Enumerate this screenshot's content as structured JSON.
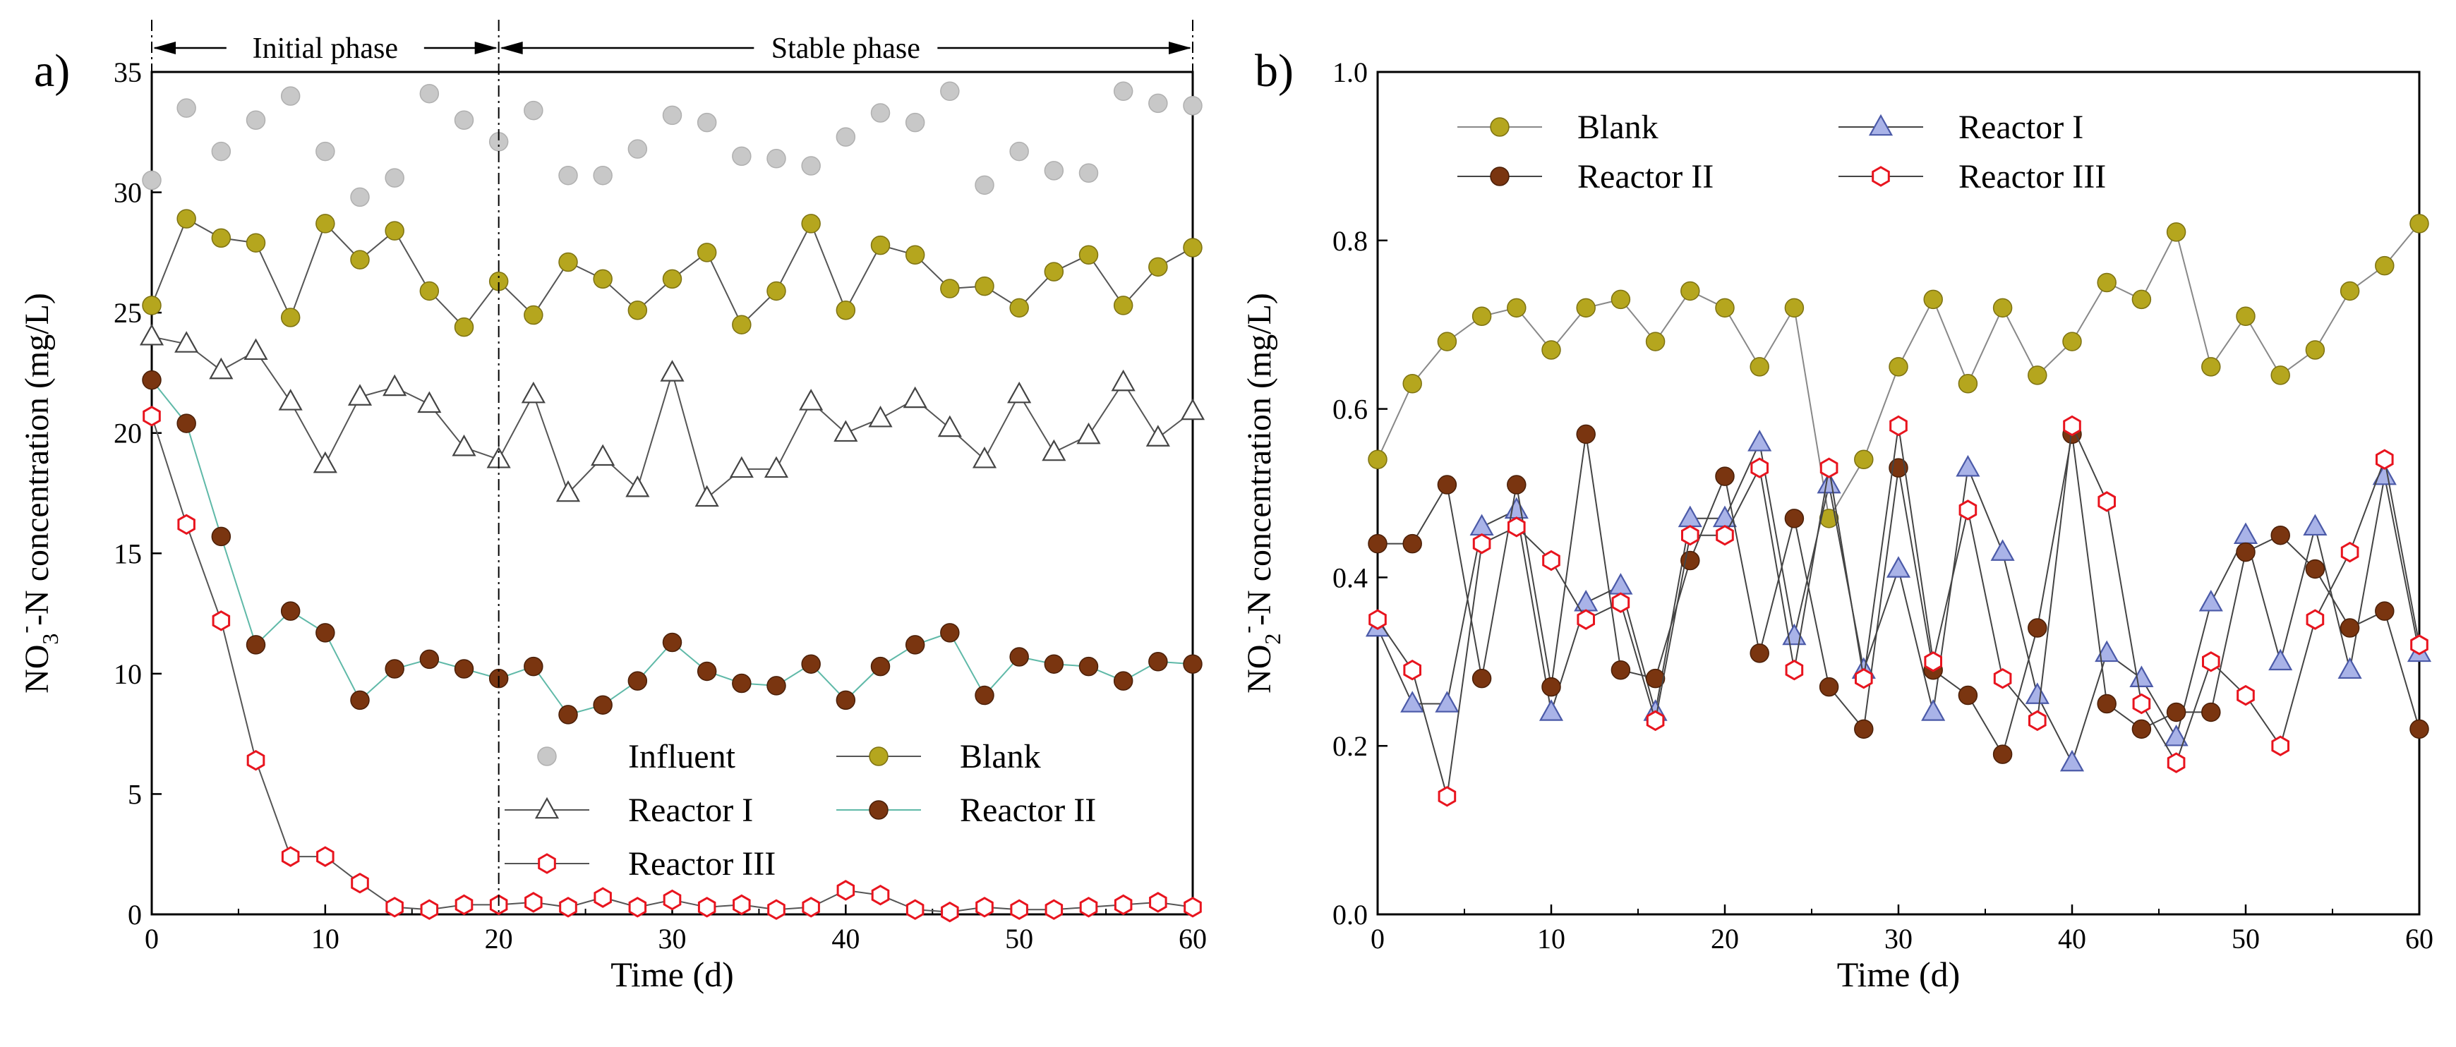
{
  "chart_data": [
    {
      "type": "scatter",
      "panel_label": "a)",
      "xlabel": "Time (d)",
      "ylabel": {
        "main": "NO",
        "sub": "3",
        "sup": "-",
        "rest": "-N concentration (mg/L)"
      },
      "xlim": [
        0,
        60
      ],
      "ylim": [
        0,
        35
      ],
      "xticks": [
        0,
        10,
        20,
        30,
        40,
        50,
        60
      ],
      "yticks": [
        0,
        5,
        10,
        15,
        20,
        25,
        30,
        35
      ],
      "phases": {
        "initial": "Initial phase",
        "stable": "Stable phase",
        "divider_x": 20
      },
      "legend": [
        "Influent",
        "Blank",
        "Reactor I",
        "Reactor II",
        "Reactor III"
      ],
      "series": [
        {
          "name": "Influent",
          "marker": "circle",
          "color": "#c8c8c8",
          "line": false,
          "x": [
            0,
            2,
            4,
            6,
            8,
            10,
            12,
            14,
            16,
            18,
            20,
            22,
            24,
            26,
            28,
            30,
            32,
            34,
            36,
            38,
            40,
            42,
            44,
            46,
            48,
            50,
            52,
            54,
            56,
            58,
            60
          ],
          "y": [
            30.5,
            33.5,
            31.7,
            33.0,
            34.0,
            31.7,
            29.8,
            30.6,
            34.1,
            33.0,
            32.1,
            33.4,
            30.7,
            30.7,
            31.8,
            33.2,
            32.9,
            31.5,
            31.4,
            31.1,
            32.3,
            33.3,
            32.9,
            34.2,
            30.3,
            31.7,
            30.9,
            30.8,
            34.2,
            33.7,
            33.6
          ]
        },
        {
          "name": "Blank",
          "marker": "circle",
          "color": "#b5a61e",
          "line": true,
          "linecolor": "#555555",
          "x": [
            0,
            2,
            4,
            6,
            8,
            10,
            12,
            14,
            16,
            18,
            20,
            22,
            24,
            26,
            28,
            30,
            32,
            34,
            36,
            38,
            40,
            42,
            44,
            46,
            48,
            50,
            52,
            54,
            56,
            58,
            60
          ],
          "y": [
            25.3,
            28.9,
            28.1,
            27.9,
            24.8,
            28.7,
            27.2,
            28.4,
            25.9,
            24.4,
            26.3,
            24.9,
            27.1,
            26.4,
            25.1,
            26.4,
            27.5,
            24.5,
            25.9,
            28.7,
            25.1,
            27.8,
            27.4,
            26.0,
            26.1,
            25.2,
            26.7,
            27.4,
            25.3,
            26.9,
            27.7
          ]
        },
        {
          "name": "Reactor I",
          "marker": "triangle",
          "color": "#ffffff",
          "line": true,
          "linecolor": "#555555",
          "x": [
            0,
            2,
            4,
            6,
            8,
            10,
            12,
            14,
            16,
            18,
            20,
            22,
            24,
            26,
            28,
            30,
            32,
            34,
            36,
            38,
            40,
            42,
            44,
            46,
            48,
            50,
            52,
            54,
            56,
            58,
            60
          ],
          "y": [
            24.0,
            23.7,
            22.6,
            23.4,
            21.3,
            18.7,
            21.5,
            21.9,
            21.2,
            19.4,
            18.9,
            21.6,
            17.5,
            19.0,
            17.7,
            22.5,
            17.3,
            18.5,
            18.5,
            21.3,
            20.0,
            20.6,
            21.4,
            20.2,
            18.9,
            21.6,
            19.2,
            19.9,
            22.1,
            19.8,
            20.9
          ]
        },
        {
          "name": "Reactor II",
          "marker": "circle",
          "color": "#7a3510",
          "line": true,
          "linecolor": "#5fb9a8",
          "x": [
            0,
            2,
            4,
            6,
            8,
            10,
            12,
            14,
            16,
            18,
            20,
            22,
            24,
            26,
            28,
            30,
            32,
            34,
            36,
            38,
            40,
            42,
            44,
            46,
            48,
            50,
            52,
            54,
            56,
            58,
            60
          ],
          "y": [
            22.2,
            20.4,
            15.7,
            11.2,
            12.6,
            11.7,
            8.9,
            10.2,
            10.6,
            10.2,
            9.8,
            10.3,
            8.3,
            8.7,
            9.7,
            11.3,
            10.1,
            9.6,
            9.5,
            10.4,
            8.9,
            10.3,
            11.2,
            11.7,
            9.1,
            10.7,
            10.4,
            10.3,
            9.7,
            10.5,
            10.4
          ]
        },
        {
          "name": "Reactor III",
          "marker": "hexagon",
          "color": "#e8141e",
          "line": true,
          "linecolor": "#555555",
          "x": [
            0,
            2,
            4,
            6,
            8,
            10,
            12,
            14,
            16,
            18,
            20,
            22,
            24,
            26,
            28,
            30,
            32,
            34,
            36,
            38,
            40,
            42,
            44,
            46,
            48,
            50,
            52,
            54,
            56,
            58,
            60
          ],
          "y": [
            20.7,
            16.2,
            12.2,
            6.4,
            2.4,
            2.4,
            1.3,
            0.3,
            0.2,
            0.4,
            0.4,
            0.5,
            0.3,
            0.7,
            0.3,
            0.6,
            0.3,
            0.4,
            0.2,
            0.3,
            1.0,
            0.8,
            0.2,
            0.1,
            0.3,
            0.2,
            0.2,
            0.3,
            0.4,
            0.5,
            0.3
          ]
        }
      ]
    },
    {
      "type": "line",
      "panel_label": "b)",
      "xlabel": "Time (d)",
      "ylabel": {
        "main": "NO",
        "sub": "2",
        "sup": "-",
        "rest": "-N concentration (mg/L)"
      },
      "xlim": [
        0,
        60
      ],
      "ylim": [
        0.0,
        1.0
      ],
      "xticks": [
        0,
        10,
        20,
        30,
        40,
        50,
        60
      ],
      "yticks": [
        "0.0",
        "0.2",
        "0.4",
        "0.6",
        "0.8",
        "1.0"
      ],
      "legend": [
        "Blank",
        "Reactor I",
        "Reactor II",
        "Reactor III"
      ],
      "series": [
        {
          "name": "Blank",
          "marker": "circle",
          "color": "#b5a61e",
          "line": true,
          "linecolor": "#888888",
          "x": [
            0,
            2,
            4,
            6,
            8,
            10,
            12,
            14,
            16,
            18,
            20,
            22,
            24,
            26,
            28,
            30,
            32,
            34,
            36,
            38,
            40,
            42,
            44,
            46,
            48,
            50,
            52,
            54,
            56,
            58,
            60
          ],
          "y": [
            0.54,
            0.63,
            0.68,
            0.71,
            0.72,
            0.67,
            0.72,
            0.73,
            0.68,
            0.74,
            0.72,
            0.65,
            0.72,
            0.47,
            0.54,
            0.65,
            0.73,
            0.63,
            0.72,
            0.64,
            0.68,
            0.75,
            0.73,
            0.81,
            0.65,
            0.71,
            0.64,
            0.67,
            0.74,
            0.77,
            0.82
          ]
        },
        {
          "name": "Reactor I",
          "marker": "triangle",
          "color": "#a9b3e8",
          "line": true,
          "linecolor": "#444444",
          "x": [
            0,
            2,
            4,
            6,
            8,
            10,
            12,
            14,
            16,
            18,
            20,
            22,
            24,
            26,
            28,
            30,
            32,
            34,
            36,
            38,
            40,
            42,
            44,
            46,
            48,
            50,
            52,
            54,
            56,
            58,
            60
          ],
          "y": [
            0.34,
            0.25,
            0.25,
            0.46,
            0.48,
            0.24,
            0.37,
            0.39,
            0.24,
            0.47,
            0.47,
            0.56,
            0.33,
            0.51,
            0.29,
            0.41,
            0.24,
            0.53,
            0.43,
            0.26,
            0.18,
            0.31,
            0.28,
            0.21,
            0.37,
            0.45,
            0.3,
            0.46,
            0.29,
            0.52,
            0.31
          ]
        },
        {
          "name": "Reactor II",
          "marker": "circle",
          "color": "#7a3510",
          "line": true,
          "linecolor": "#444444",
          "x": [
            0,
            2,
            4,
            6,
            8,
            10,
            12,
            14,
            16,
            18,
            20,
            22,
            24,
            26,
            28,
            30,
            32,
            34,
            36,
            38,
            40,
            42,
            44,
            46,
            48,
            50,
            52,
            54,
            56,
            58,
            60
          ],
          "y": [
            0.44,
            0.44,
            0.51,
            0.28,
            0.51,
            0.27,
            0.57,
            0.29,
            0.28,
            0.42,
            0.52,
            0.31,
            0.47,
            0.27,
            0.22,
            0.53,
            0.29,
            0.26,
            0.19,
            0.34,
            0.57,
            0.25,
            0.22,
            0.24,
            0.24,
            0.43,
            0.45,
            0.41,
            0.34,
            0.36,
            0.22
          ]
        },
        {
          "name": "Reactor III",
          "marker": "hexagon",
          "color": "#e8141e",
          "line": true,
          "linecolor": "#444444",
          "x": [
            0,
            2,
            4,
            6,
            8,
            10,
            12,
            14,
            16,
            18,
            20,
            22,
            24,
            26,
            28,
            30,
            32,
            34,
            36,
            38,
            40,
            42,
            44,
            46,
            48,
            50,
            52,
            54,
            56,
            58,
            60
          ],
          "y": [
            0.35,
            0.29,
            0.14,
            0.44,
            0.46,
            0.42,
            0.35,
            0.37,
            0.23,
            0.45,
            0.45,
            0.53,
            0.29,
            0.53,
            0.28,
            0.58,
            0.3,
            0.48,
            0.28,
            0.23,
            0.58,
            0.49,
            0.25,
            0.18,
            0.3,
            0.26,
            0.2,
            0.35,
            0.43,
            0.54,
            0.32
          ]
        }
      ]
    }
  ]
}
